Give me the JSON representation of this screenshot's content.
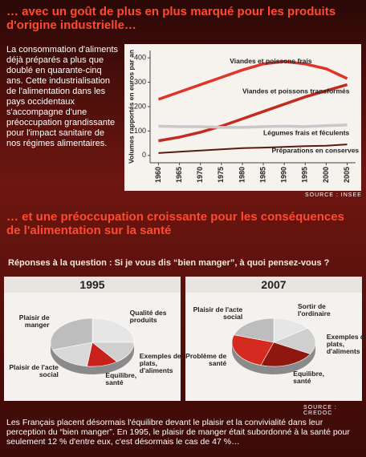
{
  "heading_1": "… avec un goût de plus en plus marqué pour les produits d'origine industrielle…",
  "intro": "La consommation d'aliments déjà préparés a plus que doublé en quarante-cinq ans. Cette industrialisation de l'alimentation dans les pays occidentaux s'accompagne d'une préoccupation grandissante pour l'impact sanitaire de nos régimes alimentaires.",
  "heading_2": "… et une préoccupation croissante pour les conséquences de l'alimentation sur la santé",
  "question": "Réponses à la question : Si je vous dis “bien manger”, à quoi pensez-vous ?",
  "pies_source": "SOURCE : CREDOC",
  "conclusion": "Les Français placent désormais l'équilibre devant le plaisir et la convivialité dans leur perception du “bien manger”. En 1995, le plaisir de manger était subordonné à la santé pour seulement 12 % d'entre eux, c'est désormais le cas de 47 %…",
  "chart_data": [
    {
      "type": "line",
      "ylabel": "Volumes rapportés en euros par an",
      "source": "SOURCE : INSEE",
      "x": [
        1960,
        1965,
        1970,
        1975,
        1980,
        1985,
        1990,
        1995,
        2000,
        2005
      ],
      "xlim": [
        1958,
        2007
      ],
      "xticks": [
        1960,
        1965,
        1970,
        1975,
        1980,
        1985,
        1990,
        1995,
        2000,
        2005
      ],
      "ylim": [
        -30,
        430
      ],
      "yticks": [
        0,
        100,
        200,
        300,
        400
      ],
      "series": [
        {
          "name": "Viandes et poissons frais",
          "color": "#e0332a",
          "values": [
            230,
            260,
            290,
            320,
            350,
            375,
            385,
            375,
            355,
            315
          ]
        },
        {
          "name": "Viandes et poissons transformés",
          "color": "#c42a1e",
          "values": [
            60,
            75,
            95,
            120,
            150,
            180,
            210,
            240,
            265,
            290
          ]
        },
        {
          "name": "Légumes frais et féculents",
          "color": "#c8c8c8",
          "values": [
            120,
            118,
            118,
            115,
            115,
            118,
            120,
            118,
            122,
            125
          ]
        },
        {
          "name": "Préparations en conserves",
          "color": "#5a1a10",
          "values": [
            10,
            15,
            20,
            25,
            30,
            32,
            35,
            38,
            40,
            45
          ]
        }
      ]
    },
    {
      "type": "pie",
      "title": "1995",
      "categories": [
        "Qualité des produits",
        "Exemples de plats, d'aliments",
        "Equilibre, santé",
        "Plaisir de l'acte social",
        "Plaisir de manger"
      ],
      "values": [
        25,
        15,
        12,
        18,
        30
      ],
      "colors": [
        "#e6e6e6",
        "#cfcfcf",
        "#c8201a",
        "#d9d9d9",
        "#bdbdbd"
      ]
    },
    {
      "type": "pie",
      "title": "2007",
      "categories": [
        "Sortir de l'ordinaire",
        "Exemples de plats, d'aliments",
        "Equilibre, santé",
        "Problème de santé",
        "Plaisir de l'acte social"
      ],
      "values": [
        15,
        18,
        22,
        25,
        20
      ],
      "colors": [
        "#e6e6e6",
        "#cfcfcf",
        "#8e1710",
        "#d42a20",
        "#bdbdbd"
      ]
    }
  ]
}
